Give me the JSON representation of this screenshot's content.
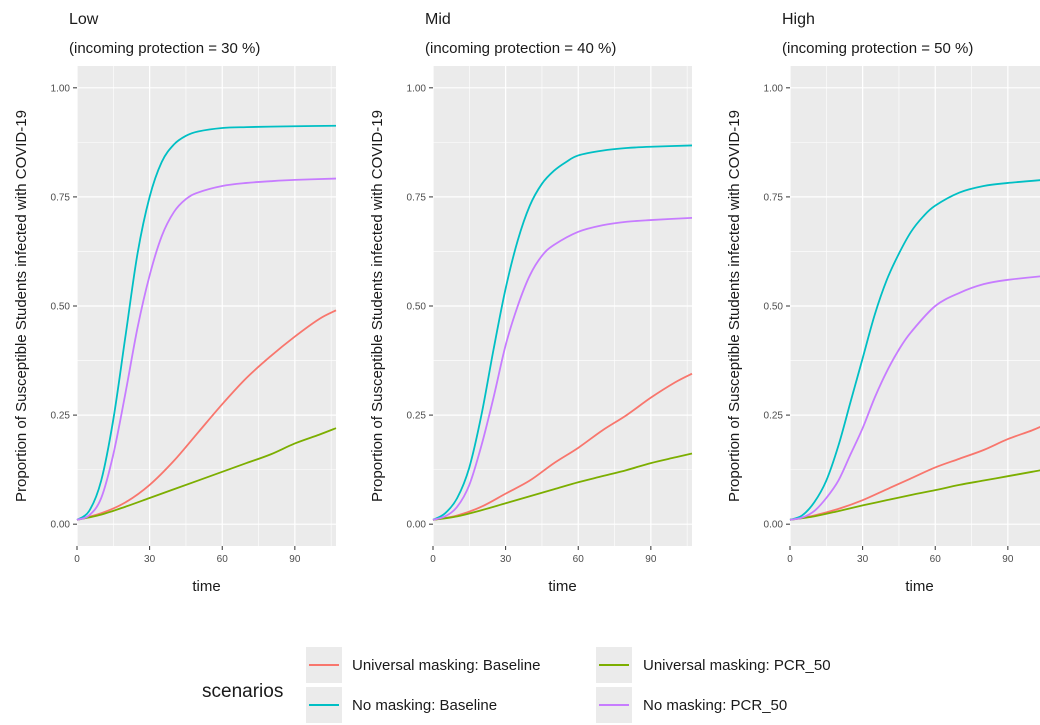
{
  "chart_data": {
    "type": "line",
    "layout": "three-panel-facet",
    "x_label": "time",
    "y_label": "Proportion of Susceptible Students infected with COVID-19",
    "x_range": [
      0,
      107
    ],
    "y_range": [
      0,
      1
    ],
    "x_ticks": [
      0,
      30,
      60,
      90
    ],
    "y_ticks": [
      0.0,
      0.25,
      0.5,
      0.75,
      1.0
    ],
    "y_tick_labels": [
      "0.00",
      "0.25",
      "0.50",
      "0.75",
      "1.00"
    ],
    "grid": true,
    "legend": {
      "title": "scenarios",
      "position": "bottom",
      "entries": [
        {
          "label": "Universal masking: Baseline",
          "color": "#F8766D"
        },
        {
          "label": "Universal masking: PCR_50",
          "color": "#7CAE00"
        },
        {
          "label": "No masking: Baseline",
          "color": "#00BFC4"
        },
        {
          "label": "No masking: PCR_50",
          "color": "#C77CFF"
        }
      ]
    },
    "panels": [
      {
        "title": "Low",
        "subtitle": "(incoming protection =  30 %)",
        "series": [
          {
            "name": "Universal masking: Baseline",
            "color": "#F8766D",
            "x": [
              0,
              10,
              20,
              30,
              40,
              50,
              60,
              70,
              80,
              90,
              100,
              107
            ],
            "y": [
              0.01,
              0.025,
              0.05,
              0.09,
              0.145,
              0.21,
              0.275,
              0.335,
              0.385,
              0.43,
              0.47,
              0.49
            ]
          },
          {
            "name": "Universal masking: PCR_50",
            "color": "#7CAE00",
            "x": [
              0,
              10,
              20,
              30,
              40,
              50,
              60,
              70,
              80,
              90,
              100,
              107
            ],
            "y": [
              0.01,
              0.022,
              0.04,
              0.06,
              0.08,
              0.1,
              0.12,
              0.14,
              0.16,
              0.185,
              0.205,
              0.22
            ]
          },
          {
            "name": "No masking: Baseline",
            "color": "#00BFC4",
            "x": [
              0,
              5,
              10,
              15,
              20,
              25,
              30,
              35,
              40,
              45,
              50,
              60,
              70,
              80,
              90,
              107
            ],
            "y": [
              0.01,
              0.03,
              0.1,
              0.24,
              0.43,
              0.62,
              0.75,
              0.83,
              0.87,
              0.89,
              0.9,
              0.908,
              0.91,
              0.911,
              0.912,
              0.913
            ]
          },
          {
            "name": "No masking: PCR_50",
            "color": "#C77CFF",
            "x": [
              0,
              5,
              10,
              15,
              20,
              25,
              30,
              35,
              40,
              45,
              50,
              60,
              70,
              80,
              90,
              107
            ],
            "y": [
              0.01,
              0.02,
              0.06,
              0.16,
              0.3,
              0.45,
              0.57,
              0.66,
              0.715,
              0.745,
              0.76,
              0.775,
              0.782,
              0.786,
              0.789,
              0.792
            ]
          }
        ]
      },
      {
        "title": "Mid",
        "subtitle": "(incoming protection =  40 %)",
        "series": [
          {
            "name": "Universal masking: Baseline",
            "color": "#F8766D",
            "x": [
              0,
              10,
              20,
              30,
              40,
              50,
              60,
              70,
              80,
              90,
              100,
              107
            ],
            "y": [
              0.01,
              0.02,
              0.04,
              0.07,
              0.1,
              0.14,
              0.175,
              0.215,
              0.25,
              0.29,
              0.325,
              0.345
            ]
          },
          {
            "name": "Universal masking: PCR_50",
            "color": "#7CAE00",
            "x": [
              0,
              10,
              20,
              30,
              40,
              50,
              60,
              70,
              80,
              90,
              100,
              107
            ],
            "y": [
              0.01,
              0.018,
              0.032,
              0.048,
              0.064,
              0.08,
              0.096,
              0.11,
              0.124,
              0.14,
              0.153,
              0.162
            ]
          },
          {
            "name": "No masking: Baseline",
            "color": "#00BFC4",
            "x": [
              0,
              5,
              10,
              15,
              20,
              25,
              30,
              35,
              40,
              45,
              50,
              55,
              60,
              70,
              80,
              90,
              107
            ],
            "y": [
              0.01,
              0.025,
              0.06,
              0.13,
              0.25,
              0.4,
              0.54,
              0.65,
              0.73,
              0.78,
              0.81,
              0.83,
              0.845,
              0.856,
              0.862,
              0.865,
              0.868
            ]
          },
          {
            "name": "No masking: PCR_50",
            "color": "#C77CFF",
            "x": [
              0,
              5,
              10,
              15,
              20,
              25,
              30,
              35,
              40,
              45,
              50,
              60,
              70,
              80,
              90,
              107
            ],
            "y": [
              0.01,
              0.018,
              0.04,
              0.09,
              0.18,
              0.29,
              0.41,
              0.5,
              0.57,
              0.615,
              0.64,
              0.67,
              0.685,
              0.693,
              0.697,
              0.702
            ]
          }
        ]
      },
      {
        "title": "High",
        "subtitle": "(incoming protection =  50 %)",
        "series": [
          {
            "name": "Universal masking: Baseline",
            "color": "#F8766D",
            "x": [
              0,
              10,
              20,
              30,
              40,
              50,
              60,
              70,
              80,
              90,
              100,
              107
            ],
            "y": [
              0.01,
              0.02,
              0.035,
              0.055,
              0.08,
              0.105,
              0.13,
              0.15,
              0.17,
              0.195,
              0.215,
              0.232
            ]
          },
          {
            "name": "Universal masking: PCR_50",
            "color": "#7CAE00",
            "x": [
              0,
              10,
              20,
              30,
              40,
              50,
              60,
              70,
              80,
              90,
              100,
              107
            ],
            "y": [
              0.01,
              0.018,
              0.03,
              0.043,
              0.055,
              0.067,
              0.078,
              0.09,
              0.1,
              0.11,
              0.12,
              0.127
            ]
          },
          {
            "name": "No masking: Baseline",
            "color": "#00BFC4",
            "x": [
              0,
              5,
              10,
              15,
              20,
              25,
              30,
              35,
              40,
              45,
              50,
              55,
              60,
              70,
              80,
              90,
              107
            ],
            "y": [
              0.01,
              0.02,
              0.05,
              0.1,
              0.18,
              0.28,
              0.38,
              0.48,
              0.56,
              0.62,
              0.67,
              0.705,
              0.73,
              0.76,
              0.775,
              0.782,
              0.79
            ]
          },
          {
            "name": "No masking: PCR_50",
            "color": "#C77CFF",
            "x": [
              0,
              5,
              10,
              15,
              20,
              25,
              30,
              35,
              40,
              45,
              50,
              60,
              70,
              80,
              90,
              107
            ],
            "y": [
              0.01,
              0.015,
              0.03,
              0.06,
              0.1,
              0.16,
              0.22,
              0.29,
              0.35,
              0.4,
              0.44,
              0.5,
              0.53,
              0.55,
              0.56,
              0.57
            ]
          }
        ]
      }
    ]
  }
}
